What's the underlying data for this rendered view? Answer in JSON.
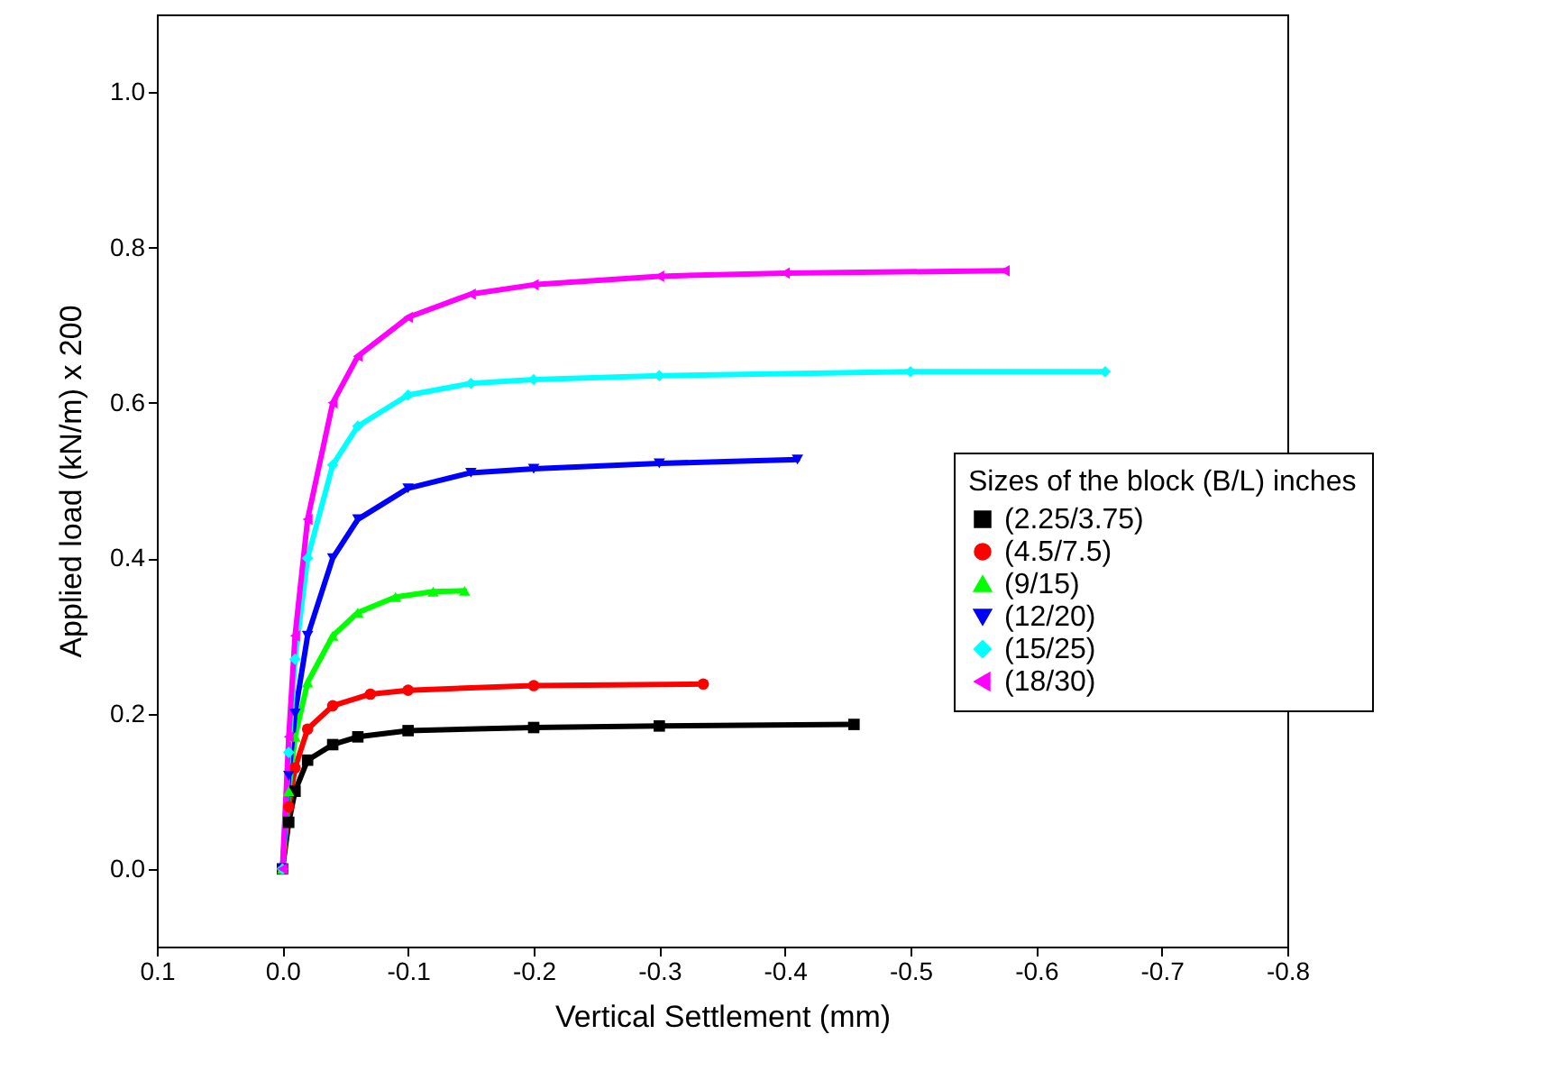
{
  "chart_data": {
    "type": "line",
    "xlabel": "Vertical Settlement (mm)",
    "ylabel": "Applied load (kN/m) x 200",
    "legend_title": "Sizes of the block (B/L) inches",
    "legend": "right",
    "grid": false,
    "line_style": "solid",
    "xlim": [
      0.1,
      -0.8
    ],
    "xticks": [
      0.1,
      {
        "value": 0,
        "label": "0.0"
      },
      -0.1,
      -0.2,
      -0.3,
      -0.4,
      -0.5,
      -0.6,
      -0.7,
      -0.8
    ],
    "ylim": [
      -0.1,
      1.1
    ],
    "yticks": [
      {
        "value": 0,
        "label": "0.0"
      },
      0.2,
      0.4,
      0.6,
      0.8,
      {
        "value": 1,
        "label": "1.0"
      }
    ],
    "series": [
      {
        "name": "(2.25/3.75)",
        "color": "#000000",
        "marker": "square",
        "x": [
          0,
          -0.005,
          -0.01,
          -0.02,
          -0.04,
          -0.06,
          -0.1,
          -0.2,
          -0.3,
          -0.455
        ],
        "values": [
          0,
          0.06,
          0.1,
          0.14,
          0.16,
          0.17,
          0.178,
          0.182,
          0.184,
          0.186
        ]
      },
      {
        "name": "(4.5/7.5)",
        "color": "#ff0000",
        "marker": "circle",
        "x": [
          0,
          -0.005,
          -0.01,
          -0.02,
          -0.04,
          -0.07,
          -0.1,
          -0.2,
          -0.335
        ],
        "values": [
          0,
          0.08,
          0.13,
          0.18,
          0.21,
          0.225,
          0.23,
          0.236,
          0.238
        ]
      },
      {
        "name": "(9/15)",
        "color": "#00ff00",
        "marker": "triangle-up",
        "x": [
          0,
          -0.005,
          -0.01,
          -0.02,
          -0.04,
          -0.06,
          -0.09,
          -0.12,
          -0.145
        ],
        "values": [
          0,
          0.1,
          0.17,
          0.24,
          0.3,
          0.33,
          0.35,
          0.357,
          0.358
        ]
      },
      {
        "name": "(12/20)",
        "color": "#0000ff",
        "marker": "triangle-down",
        "x": [
          0,
          -0.005,
          -0.01,
          -0.02,
          -0.04,
          -0.06,
          -0.1,
          -0.15,
          -0.2,
          -0.3,
          -0.41
        ],
        "values": [
          0,
          0.12,
          0.2,
          0.3,
          0.4,
          0.45,
          0.49,
          0.51,
          0.515,
          0.522,
          0.527
        ]
      },
      {
        "name": "(15/25)",
        "color": "#00ffff",
        "marker": "diamond",
        "x": [
          0,
          -0.005,
          -0.01,
          -0.02,
          -0.04,
          -0.06,
          -0.1,
          -0.15,
          -0.2,
          -0.3,
          -0.5,
          -0.655
        ],
        "values": [
          0,
          0.15,
          0.27,
          0.4,
          0.52,
          0.57,
          0.61,
          0.625,
          0.63,
          0.635,
          0.64,
          0.64
        ]
      },
      {
        "name": "(18/30)",
        "color": "#ff00ff",
        "marker": "triangle-left",
        "x": [
          0,
          -0.005,
          -0.01,
          -0.02,
          -0.04,
          -0.06,
          -0.1,
          -0.15,
          -0.2,
          -0.3,
          -0.4,
          -0.575
        ],
        "values": [
          0,
          0.17,
          0.3,
          0.45,
          0.6,
          0.66,
          0.71,
          0.74,
          0.752,
          0.763,
          0.767,
          0.77
        ]
      }
    ]
  }
}
